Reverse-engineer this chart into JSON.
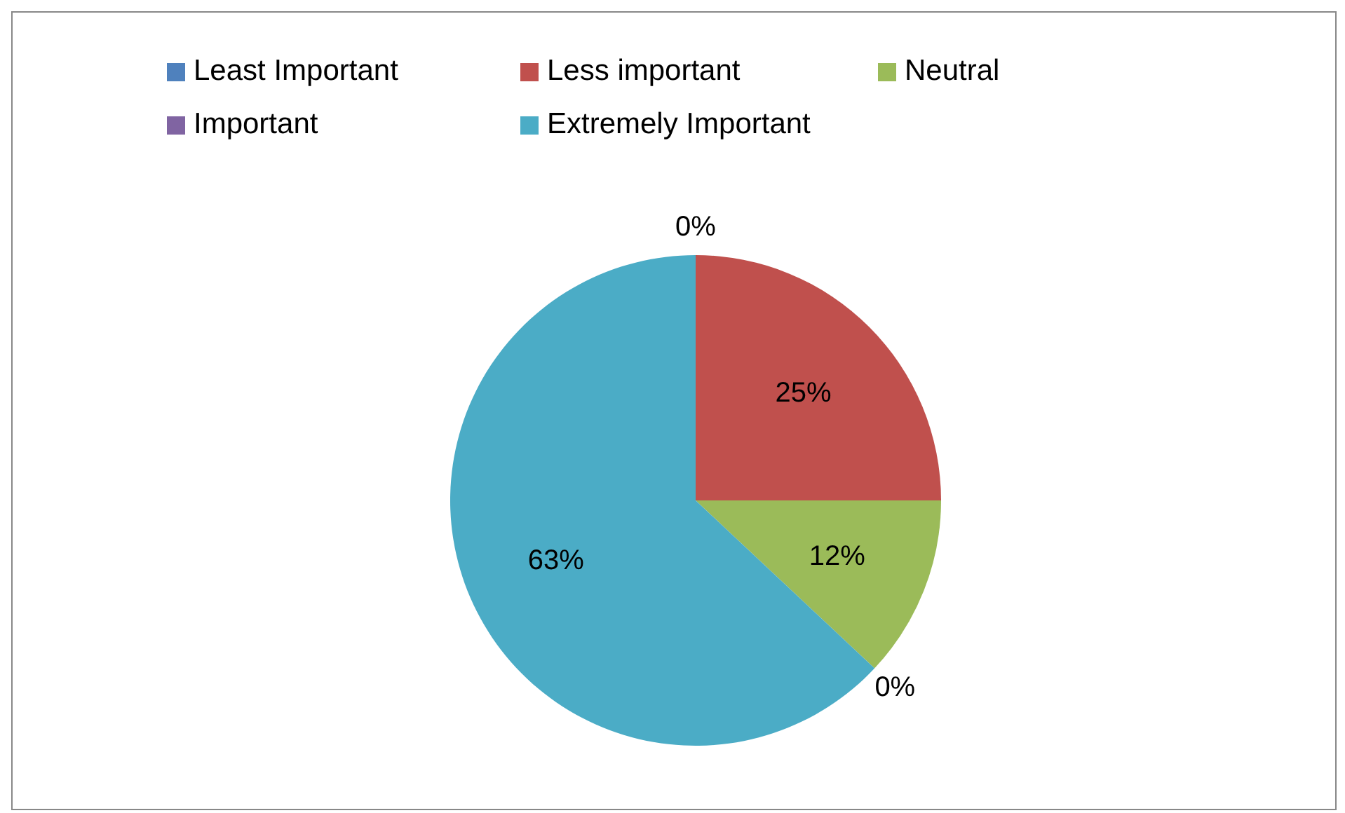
{
  "chart_data": {
    "type": "pie",
    "categories": [
      "Least Important",
      "Less important",
      "Neutral",
      "Important",
      "Extremely Important"
    ],
    "values": [
      0,
      25,
      12,
      0,
      63
    ],
    "colors": [
      "#4f81bd",
      "#c0504d",
      "#9bbb59",
      "#8064a2",
      "#4bacc6"
    ],
    "value_labels": [
      "0%",
      "25%",
      "12%",
      "0%",
      "63%"
    ],
    "legend": "top"
  }
}
